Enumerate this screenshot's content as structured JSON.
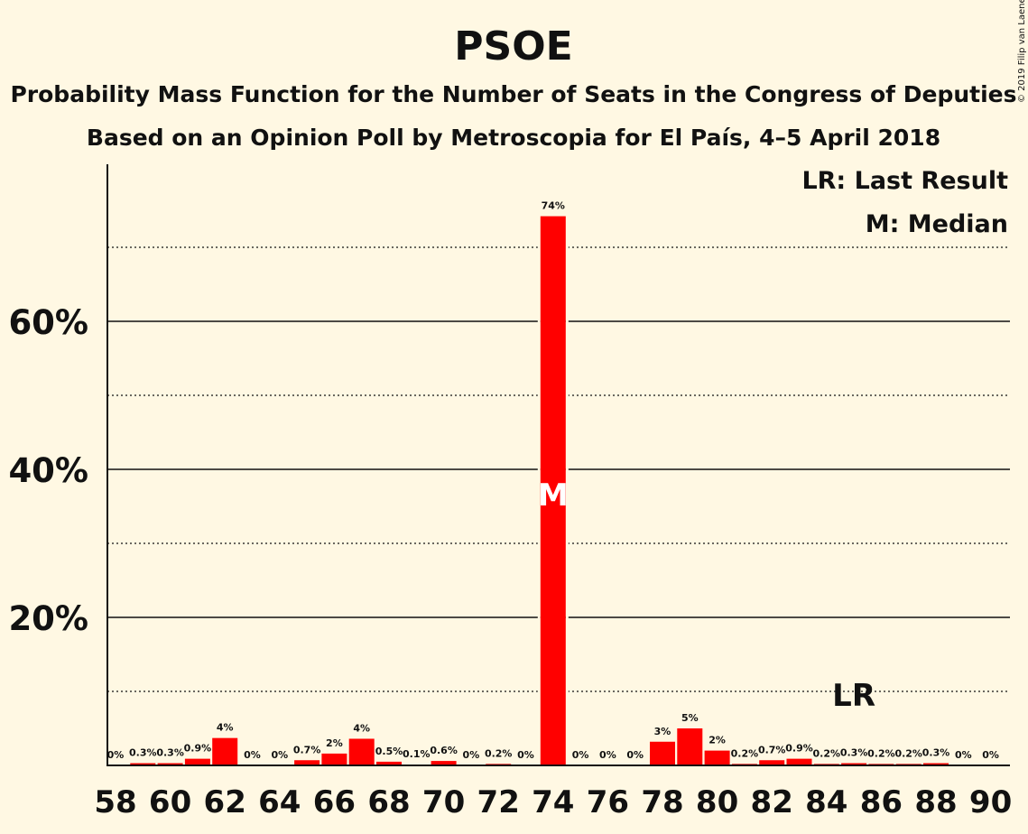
{
  "chart_data": {
    "type": "bar",
    "title": "PSOE",
    "subtitle": "Probability Mass Function for the Number of Seats in the Congress of Deputies",
    "subtitle2": "Based on an Opinion Poll by Metroscopia for El País, 4–5 April 2018",
    "copyright": "© 2019 Filip van Laenen",
    "x": [
      58,
      59,
      60,
      61,
      62,
      63,
      64,
      65,
      66,
      67,
      68,
      69,
      70,
      71,
      72,
      73,
      74,
      75,
      76,
      77,
      78,
      79,
      80,
      81,
      82,
      83,
      84,
      85,
      86,
      87,
      88,
      89,
      90
    ],
    "values": [
      0,
      0.3,
      0.3,
      0.9,
      3.7,
      0,
      0,
      0.7,
      1.6,
      3.6,
      0.5,
      0.1,
      0.6,
      0,
      0.2,
      0,
      74.2,
      0,
      0,
      0,
      3.2,
      5.0,
      2.0,
      0.2,
      0.7,
      0.9,
      0.2,
      0.3,
      0.2,
      0.2,
      0.3,
      0,
      0
    ],
    "value_labels": [
      "0%",
      "0.3%",
      "0.3%",
      "0.9%",
      "4%",
      "0%",
      "0%",
      "0.7%",
      "2%",
      "4%",
      "0.5%",
      "0.1%",
      "0.6%",
      "0%",
      "0.2%",
      "0%",
      "74%",
      "0%",
      "0%",
      "0%",
      "3%",
      "5%",
      "2%",
      "0.2%",
      "0.7%",
      "0.9%",
      "0.2%",
      "0.3%",
      "0.2%",
      "0.2%",
      "0.3%",
      "0%",
      "0%"
    ],
    "x_tick_labels": [
      "58",
      "60",
      "62",
      "64",
      "66",
      "68",
      "70",
      "72",
      "74",
      "76",
      "78",
      "80",
      "82",
      "84",
      "86",
      "88",
      "90"
    ],
    "y_tick_labels": [
      "20%",
      "40%",
      "60%"
    ],
    "y_ticks": [
      20,
      40,
      60
    ],
    "y_minor_gridlines": [
      10,
      30,
      50,
      70
    ],
    "ylim": [
      0,
      81
    ],
    "grid": true,
    "bar_color": "#FF0000",
    "background_color": "#FFF8E3",
    "median": 74,
    "median_marker": "M",
    "last_result": 85,
    "last_result_marker": "LR",
    "legend": [
      "LR: Last Result",
      "M: Median"
    ],
    "legend_position": "top-right"
  }
}
